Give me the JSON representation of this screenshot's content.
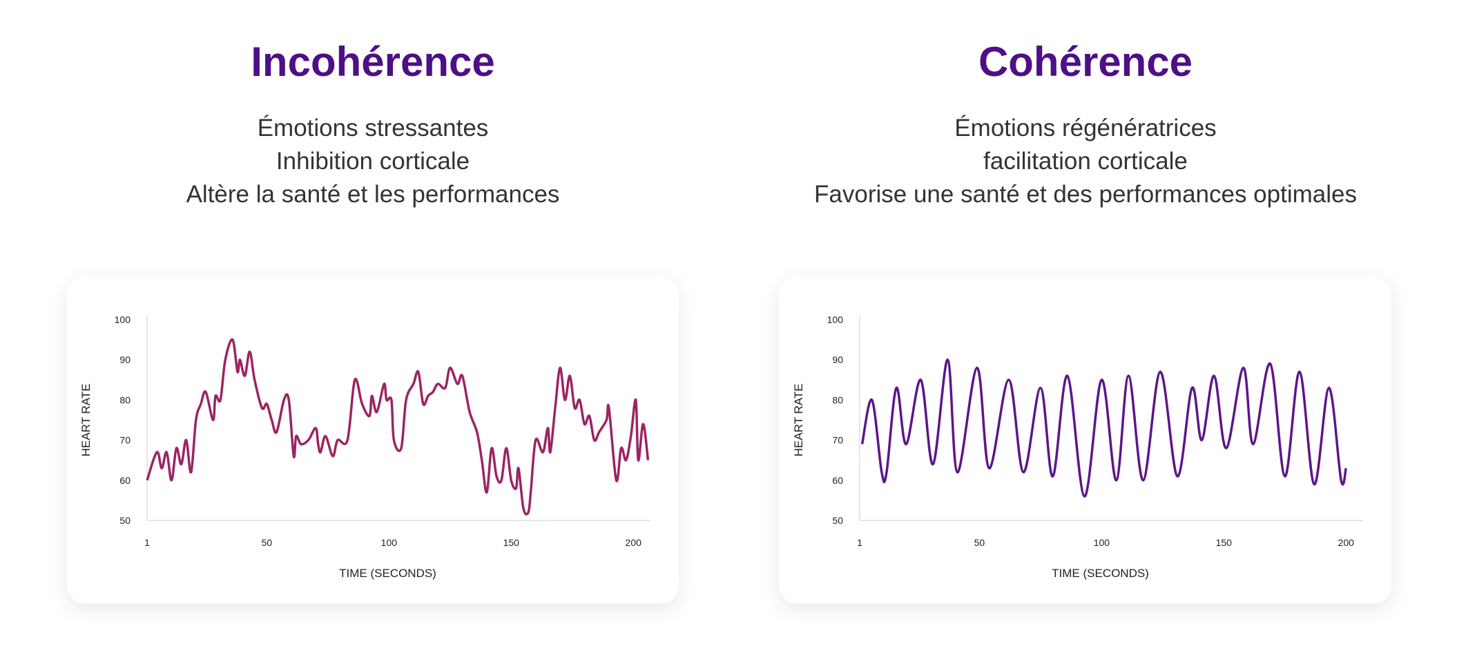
{
  "chart_data": [
    {
      "type": "line",
      "title": "Incohérence",
      "subtitle": [
        "Émotions stressantes",
        "Inhibition corticale",
        "Altère la santé et les performances"
      ],
      "xlabel": "TIME (SECONDS)",
      "ylabel": "HEART RATE",
      "x": [
        1,
        5,
        7,
        9,
        11,
        13,
        15,
        17,
        19,
        21,
        23,
        25,
        28,
        29,
        31,
        33,
        36,
        38,
        39,
        41,
        43,
        45,
        48,
        50,
        52,
        54,
        57,
        59,
        61,
        62,
        64,
        67,
        70,
        71,
        72,
        74,
        77,
        79,
        83,
        86,
        89,
        92,
        93,
        95,
        98,
        99,
        101,
        102,
        105,
        107,
        110,
        112,
        114,
        116,
        118,
        120,
        123,
        125,
        128,
        130,
        133,
        136,
        138,
        140,
        142,
        144,
        146,
        148,
        150,
        152,
        153,
        155,
        157,
        158,
        160,
        163,
        165,
        166,
        168,
        170,
        172,
        174,
        176,
        178,
        180,
        182,
        184,
        186,
        189,
        190,
        193,
        195,
        197,
        199,
        201,
        202,
        204,
        206
      ],
      "series": [
        {
          "color": "#9b2463",
          "values": [
            60,
            67,
            63,
            67,
            60,
            68,
            64,
            70,
            62,
            75,
            79,
            82,
            75,
            81,
            80,
            90,
            95,
            87,
            90,
            86,
            92,
            85,
            78,
            79,
            75,
            72,
            80,
            80,
            66,
            71,
            69,
            70,
            73,
            69,
            67,
            71,
            66,
            70,
            70,
            85,
            79,
            76,
            81,
            77,
            84,
            80,
            80,
            70,
            68,
            80,
            84,
            87,
            79,
            81,
            82,
            84,
            83,
            88,
            84,
            86,
            77,
            72,
            65,
            57,
            68,
            61,
            60,
            68,
            60,
            58,
            63,
            53,
            52,
            57,
            70,
            67,
            73,
            67,
            78,
            88,
            80,
            86,
            78,
            80,
            74,
            76,
            70,
            72,
            75,
            78,
            60,
            68,
            65,
            71,
            80,
            65,
            74,
            65
          ]
        }
      ],
      "xlim": [
        1,
        207
      ],
      "xticks": [
        1,
        50,
        100,
        150,
        200
      ],
      "ylim": [
        50,
        100
      ],
      "yticks": [
        50,
        60,
        70,
        80,
        90,
        100
      ]
    },
    {
      "type": "line",
      "title": "Cohérence",
      "subtitle": [
        "Émotions régénératrices",
        "facilitation corticale",
        "Favorise une santé et des performances optimales"
      ],
      "xlabel": "TIME (SECONDS)",
      "ylabel": "HEART RATE",
      "x": [
        2,
        6,
        10,
        12,
        16,
        20,
        26,
        31,
        37,
        41,
        49,
        54,
        62,
        68,
        75,
        80,
        86,
        93,
        100,
        106,
        111,
        117,
        124,
        131,
        137,
        141,
        146,
        151,
        158,
        162,
        169,
        175,
        181,
        187,
        193,
        198,
        200
      ],
      "series": [
        {
          "color": "#5c1689",
          "values": [
            69,
            80,
            62,
            62,
            83,
            69,
            85,
            64,
            90,
            62,
            88,
            63,
            85,
            62,
            83,
            61,
            86,
            56,
            85,
            60,
            86,
            60,
            87,
            61,
            83,
            70,
            86,
            68,
            88,
            69,
            89,
            61,
            87,
            59,
            83,
            60,
            63
          ]
        }
      ],
      "xlim": [
        1,
        207
      ],
      "xticks": [
        1,
        50,
        100,
        150,
        200
      ],
      "ylim": [
        50,
        100
      ],
      "yticks": [
        50,
        60,
        70,
        80,
        90,
        100
      ]
    }
  ]
}
